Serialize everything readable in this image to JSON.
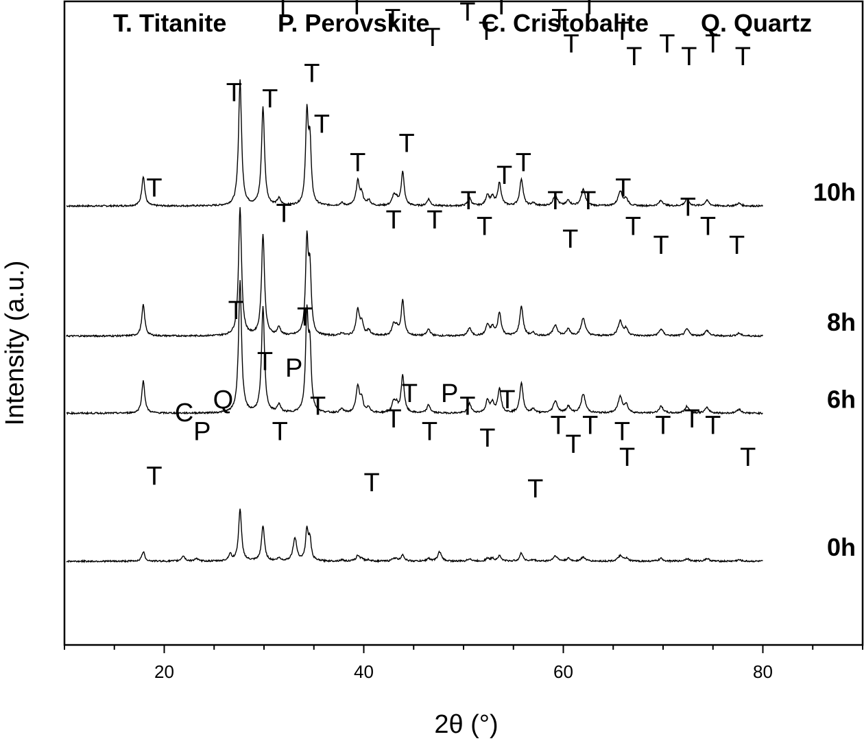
{
  "chart_data": {
    "type": "line",
    "xlabel": "2θ (°)",
    "ylabel": "Intensity (a.u.)",
    "xlim": [
      10,
      90
    ],
    "xticks": [
      20,
      40,
      60,
      80
    ],
    "phase_legend": [
      "T. Titanite",
      "P. Perovskite",
      "C. Cristobalite",
      "Q. Quartz"
    ],
    "peaks": [
      {
        "x": 17.9,
        "w": 0.18
      },
      {
        "x": 21.9,
        "w": 0.2
      },
      {
        "x": 23.2,
        "w": 0.2
      },
      {
        "x": 26.6,
        "w": 0.18
      },
      {
        "x": 27.6,
        "w": 0.18
      },
      {
        "x": 29.9,
        "w": 0.18
      },
      {
        "x": 31.5,
        "w": 0.2
      },
      {
        "x": 33.1,
        "w": 0.22
      },
      {
        "x": 34.3,
        "w": 0.16
      },
      {
        "x": 34.6,
        "w": 0.16
      },
      {
        "x": 37.8,
        "w": 0.2
      },
      {
        "x": 39.4,
        "w": 0.2
      },
      {
        "x": 39.8,
        "w": 0.18
      },
      {
        "x": 40.5,
        "w": 0.2
      },
      {
        "x": 43.0,
        "w": 0.2
      },
      {
        "x": 43.3,
        "w": 0.18
      },
      {
        "x": 43.9,
        "w": 0.18
      },
      {
        "x": 46.5,
        "w": 0.2
      },
      {
        "x": 47.6,
        "w": 0.22
      },
      {
        "x": 50.6,
        "w": 0.2
      },
      {
        "x": 52.4,
        "w": 0.2
      },
      {
        "x": 52.9,
        "w": 0.2
      },
      {
        "x": 53.6,
        "w": 0.2
      },
      {
        "x": 55.8,
        "w": 0.2
      },
      {
        "x": 57.0,
        "w": 0.2
      },
      {
        "x": 59.2,
        "w": 0.25
      },
      {
        "x": 60.5,
        "w": 0.22
      },
      {
        "x": 62.0,
        "w": 0.25
      },
      {
        "x": 65.7,
        "w": 0.25
      },
      {
        "x": 66.3,
        "w": 0.22
      },
      {
        "x": 69.8,
        "w": 0.25
      },
      {
        "x": 72.4,
        "w": 0.25
      },
      {
        "x": 74.4,
        "w": 0.25
      },
      {
        "x": 77.6,
        "w": 0.25
      }
    ],
    "series": [
      {
        "name": "10h",
        "baseline_frac": 0.318,
        "intensities": [
          0.22,
          0,
          0,
          0,
          0.93,
          0.73,
          0.05,
          0,
          0.65,
          0.44,
          0.02,
          0.18,
          0.08,
          0.04,
          0.07,
          0.04,
          0.25,
          0.05,
          0,
          0.06,
          0.08,
          0.06,
          0.17,
          0.2,
          0.02,
          0.08,
          0.04,
          0.12,
          0.11,
          0.05,
          0.04,
          0.05,
          0.04,
          0.02
        ],
        "labels": [
          {
            "text": "T",
            "x": 18.6,
            "y": 0.655
          },
          {
            "text": "T",
            "x": 28.3,
            "y": 0.905
          },
          {
            "text": "T",
            "x": 30.6,
            "y": 0.855
          },
          {
            "text": "T",
            "x": 31.9,
            "y": 0.595
          },
          {
            "text": "T",
            "x": 34.9,
            "y": 0.795
          },
          {
            "text": "T",
            "x": 35.7,
            "y": 0.715
          },
          {
            "text": "T",
            "x": 39.6,
            "y": 0.665
          },
          {
            "text": "T",
            "x": 43.2,
            "y": 0.635
          },
          {
            "text": "T",
            "x": 44.2,
            "y": 0.675
          },
          {
            "text": "T",
            "x": 47.1,
            "y": 0.635
          },
          {
            "text": "T",
            "x": 51.1,
            "y": 0.625
          },
          {
            "text": "T",
            "x": 52.6,
            "y": 0.615
          },
          {
            "text": "T",
            "x": 54.1,
            "y": 0.665
          },
          {
            "text": "T",
            "x": 56.3,
            "y": 0.675
          },
          {
            "text": "T",
            "x": 59.6,
            "y": 0.635
          },
          {
            "text": "T",
            "x": 61.0,
            "y": 0.615
          },
          {
            "text": "T",
            "x": 62.6,
            "y": 0.645
          },
          {
            "text": "T",
            "x": 66.2,
            "y": 0.645
          },
          {
            "text": "T",
            "x": 67.1,
            "y": 0.595
          },
          {
            "text": "T",
            "x": 70.7,
            "y": 0.585
          },
          {
            "text": "T",
            "x": 72.9,
            "y": 0.595
          },
          {
            "text": "T",
            "x": 75.2,
            "y": 0.595
          },
          {
            "text": "T",
            "x": 78.3,
            "y": 0.575
          }
        ]
      },
      {
        "name": "8h",
        "baseline_frac": 0.52,
        "intensities": [
          0.23,
          0,
          0,
          0,
          0.95,
          0.75,
          0.06,
          0,
          0.68,
          0.45,
          0.02,
          0.19,
          0.09,
          0.04,
          0.08,
          0.05,
          0.26,
          0.05,
          0,
          0.06,
          0.08,
          0.06,
          0.17,
          0.22,
          0.02,
          0.08,
          0.05,
          0.13,
          0.11,
          0.05,
          0.05,
          0.05,
          0.04,
          0.02
        ],
        "labels": [
          {
            "text": "T",
            "x": 18.6,
            "y": 0.56
          },
          {
            "text": "T",
            "x": 27.0,
            "y": 0.7
          },
          {
            "text": "T",
            "x": 30.6,
            "y": 0.715
          },
          {
            "text": "T",
            "x": 31.9,
            "y": 0.505
          },
          {
            "text": "T",
            "x": 34.2,
            "y": 0.685
          },
          {
            "text": "T",
            "x": 35.3,
            "y": 0.605
          },
          {
            "text": "T",
            "x": 39.3,
            "y": 0.505
          },
          {
            "text": "T",
            "x": 42.9,
            "y": 0.485
          },
          {
            "text": "T",
            "x": 44.2,
            "y": 0.535
          },
          {
            "text": "T",
            "x": 46.9,
            "y": 0.455
          },
          {
            "text": "T",
            "x": 50.4,
            "y": 0.495
          },
          {
            "text": "T",
            "x": 52.3,
            "y": 0.465
          },
          {
            "text": "T",
            "x": 53.8,
            "y": 0.505
          },
          {
            "text": "T",
            "x": 56.3,
            "y": 0.535
          },
          {
            "text": "T",
            "x": 59.6,
            "y": 0.485
          },
          {
            "text": "T",
            "x": 60.8,
            "y": 0.445
          },
          {
            "text": "T",
            "x": 62.6,
            "y": 0.505
          },
          {
            "text": "T",
            "x": 65.9,
            "y": 0.465
          },
          {
            "text": "T",
            "x": 67.1,
            "y": 0.425
          },
          {
            "text": "T",
            "x": 70.4,
            "y": 0.445
          },
          {
            "text": "T",
            "x": 72.6,
            "y": 0.425
          },
          {
            "text": "T",
            "x": 75.0,
            "y": 0.445
          },
          {
            "text": "T",
            "x": 78.0,
            "y": 0.425
          }
        ]
      },
      {
        "name": "6h",
        "baseline_frac": 0.64,
        "intensities": [
          0.24,
          0,
          0,
          0,
          0.98,
          0.78,
          0.06,
          0,
          0.7,
          0.45,
          0.03,
          0.2,
          0.09,
          0.04,
          0.08,
          0.05,
          0.28,
          0.06,
          0,
          0.07,
          0.09,
          0.07,
          0.18,
          0.22,
          0.03,
          0.09,
          0.05,
          0.14,
          0.12,
          0.06,
          0.05,
          0.05,
          0.04,
          0.03
        ],
        "labels": [
          {
            "text": "T",
            "x": 19.0,
            "y": 0.34
          },
          {
            "text": "T",
            "x": 27.0,
            "y": 0.49
          },
          {
            "text": "T",
            "x": 30.6,
            "y": 0.48
          },
          {
            "text": "T",
            "x": 32.0,
            "y": 0.3
          },
          {
            "text": "T",
            "x": 34.8,
            "y": 0.52
          },
          {
            "text": "T",
            "x": 35.8,
            "y": 0.44
          },
          {
            "text": "T",
            "x": 39.4,
            "y": 0.38
          },
          {
            "text": "T",
            "x": 43.0,
            "y": 0.29
          },
          {
            "text": "T",
            "x": 44.3,
            "y": 0.41
          },
          {
            "text": "T",
            "x": 47.1,
            "y": 0.29
          },
          {
            "text": "T",
            "x": 50.5,
            "y": 0.32
          },
          {
            "text": "T",
            "x": 52.1,
            "y": 0.28
          },
          {
            "text": "T",
            "x": 54.1,
            "y": 0.36
          },
          {
            "text": "T",
            "x": 56.0,
            "y": 0.38
          },
          {
            "text": "T",
            "x": 59.2,
            "y": 0.32
          },
          {
            "text": "T",
            "x": 60.7,
            "y": 0.26
          },
          {
            "text": "T",
            "x": 62.5,
            "y": 0.32
          },
          {
            "text": "T",
            "x": 66.0,
            "y": 0.34
          },
          {
            "text": "T",
            "x": 67.0,
            "y": 0.28
          },
          {
            "text": "T",
            "x": 69.8,
            "y": 0.25
          },
          {
            "text": "T",
            "x": 72.5,
            "y": 0.31
          },
          {
            "text": "T",
            "x": 74.5,
            "y": 0.28
          },
          {
            "text": "T",
            "x": 77.4,
            "y": 0.25
          }
        ]
      },
      {
        "name": "0h",
        "baseline_frac": 0.87,
        "intensities": [
          0.07,
          0.04,
          0.02,
          0.05,
          0.38,
          0.26,
          0.02,
          0.17,
          0.22,
          0.15,
          0.01,
          0.04,
          0.02,
          0.01,
          0.02,
          0.01,
          0.05,
          0.02,
          0.07,
          0.02,
          0.02,
          0.02,
          0.04,
          0.06,
          0.01,
          0.04,
          0.02,
          0.03,
          0.04,
          0.02,
          0.02,
          0.02,
          0.02,
          0.01
        ],
        "labels": [
          {
            "text": "T",
            "x": 19.0,
            "y": 0.12
          },
          {
            "text": "C",
            "x": 22.0,
            "y": 0.22
          },
          {
            "text": "P",
            "x": 23.8,
            "y": 0.19
          },
          {
            "text": "Q",
            "x": 25.9,
            "y": 0.24
          },
          {
            "text": "T",
            "x": 27.2,
            "y": 0.38
          },
          {
            "text": "T",
            "x": 30.1,
            "y": 0.3
          },
          {
            "text": "P",
            "x": 33.0,
            "y": 0.29
          },
          {
            "text": "T",
            "x": 31.6,
            "y": 0.19
          },
          {
            "text": "T",
            "x": 34.1,
            "y": 0.37
          },
          {
            "text": "T",
            "x": 35.4,
            "y": 0.23
          },
          {
            "text": "T",
            "x": 40.8,
            "y": 0.11
          },
          {
            "text": "T",
            "x": 43.0,
            "y": 0.21
          },
          {
            "text": "T",
            "x": 44.6,
            "y": 0.25
          },
          {
            "text": "T",
            "x": 46.6,
            "y": 0.19
          },
          {
            "text": "P",
            "x": 48.6,
            "y": 0.25
          },
          {
            "text": "T",
            "x": 50.4,
            "y": 0.23
          },
          {
            "text": "T",
            "x": 52.4,
            "y": 0.18
          },
          {
            "text": "T",
            "x": 54.4,
            "y": 0.24
          },
          {
            "text": "T",
            "x": 57.2,
            "y": 0.1
          },
          {
            "text": "T",
            "x": 59.5,
            "y": 0.2
          },
          {
            "text": "T",
            "x": 61.0,
            "y": 0.17
          },
          {
            "text": "T",
            "x": 62.7,
            "y": 0.2
          },
          {
            "text": "T",
            "x": 65.9,
            "y": 0.19
          },
          {
            "text": "T",
            "x": 66.4,
            "y": 0.15
          },
          {
            "text": "T",
            "x": 70.0,
            "y": 0.2
          },
          {
            "text": "T",
            "x": 72.9,
            "y": 0.21
          },
          {
            "text": "T",
            "x": 75.0,
            "y": 0.2
          },
          {
            "text": "T",
            "x": 78.5,
            "y": 0.15
          }
        ]
      }
    ]
  }
}
